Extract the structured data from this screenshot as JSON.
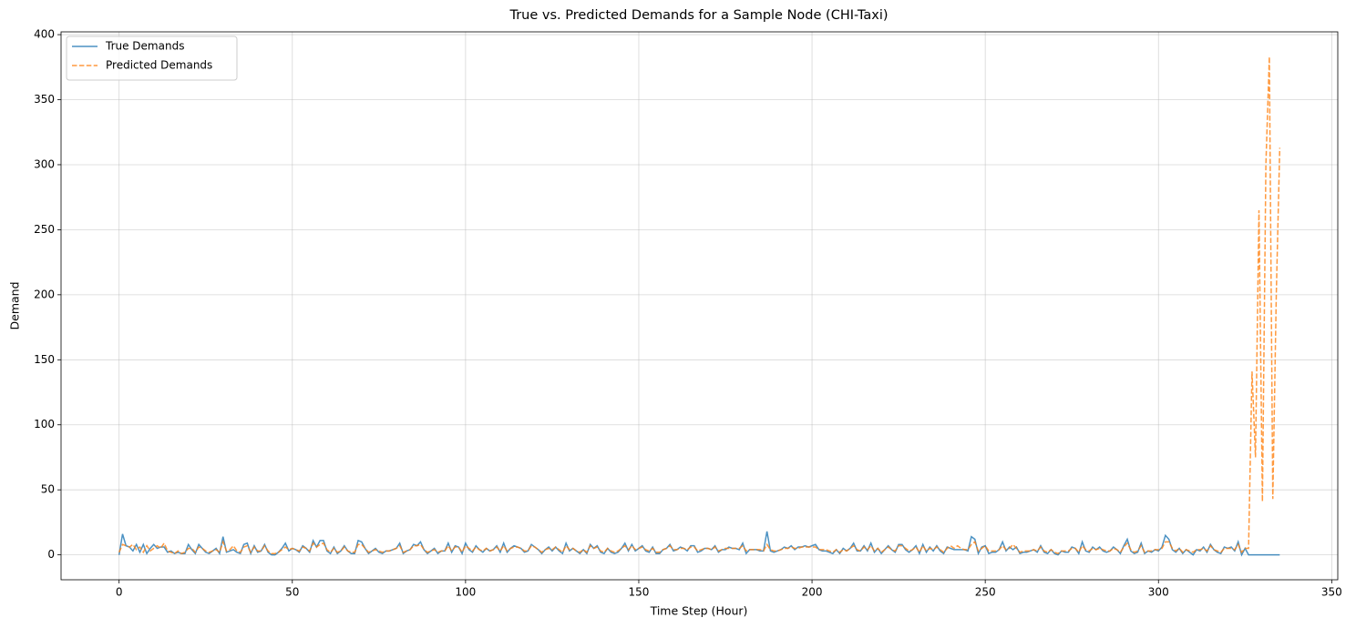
{
  "chart_data": {
    "type": "line",
    "title": "True vs. Predicted Demands for a Sample Node (CHI-Taxi)",
    "xlabel": "Time Step (Hour)",
    "ylabel": "Demand",
    "x": [
      0,
      1,
      2,
      3,
      4,
      5,
      6,
      7,
      8,
      9,
      10,
      11,
      12,
      13,
      14,
      15,
      16,
      17,
      18,
      19,
      20,
      21,
      22,
      23,
      24,
      25,
      26,
      27,
      28,
      29,
      30,
      31,
      32,
      33,
      34,
      35,
      36,
      37,
      38,
      39,
      40,
      41,
      42,
      43,
      44,
      45,
      46,
      47,
      48,
      49,
      50,
      51,
      52,
      53,
      54,
      55,
      56,
      57,
      58,
      59,
      60,
      61,
      62,
      63,
      64,
      65,
      66,
      67,
      68,
      69,
      70,
      71,
      72,
      73,
      74,
      75,
      76,
      77,
      78,
      79,
      80,
      81,
      82,
      83,
      84,
      85,
      86,
      87,
      88,
      89,
      90,
      91,
      92,
      93,
      94,
      95,
      96,
      97,
      98,
      99,
      100,
      101,
      102,
      103,
      104,
      105,
      106,
      107,
      108,
      109,
      110,
      111,
      112,
      113,
      114,
      115,
      116,
      117,
      118,
      119,
      120,
      121,
      122,
      123,
      124,
      125,
      126,
      127,
      128,
      129,
      130,
      131,
      132,
      133,
      134,
      135,
      136,
      137,
      138,
      139,
      140,
      141,
      142,
      143,
      144,
      145,
      146,
      147,
      148,
      149,
      150,
      151,
      152,
      153,
      154,
      155,
      156,
      157,
      158,
      159,
      160,
      161,
      162,
      163,
      164,
      165,
      166,
      167,
      168,
      169,
      170,
      171,
      172,
      173,
      174,
      175,
      176,
      177,
      178,
      179,
      180,
      181,
      182,
      183,
      184,
      185,
      186,
      187,
      188,
      189,
      190,
      191,
      192,
      193,
      194,
      195,
      196,
      197,
      198,
      199,
      200,
      201,
      202,
      203,
      204,
      205,
      206,
      207,
      208,
      209,
      210,
      211,
      212,
      213,
      214,
      215,
      216,
      217,
      218,
      219,
      220,
      221,
      222,
      223,
      224,
      225,
      226,
      227,
      228,
      229,
      230,
      231,
      232,
      233,
      234,
      235,
      236,
      237,
      238,
      239,
      240,
      241,
      242,
      243,
      244,
      245,
      246,
      247,
      248,
      249,
      250,
      251,
      252,
      253,
      254,
      255,
      256,
      257,
      258,
      259,
      260,
      261,
      262,
      263,
      264,
      265,
      266,
      267,
      268,
      269,
      270,
      271,
      272,
      273,
      274,
      275,
      276,
      277,
      278,
      279,
      280,
      281,
      282,
      283,
      284,
      285,
      286,
      287,
      288,
      289,
      290,
      291,
      292,
      293,
      294,
      295,
      296,
      297,
      298,
      299,
      300,
      301,
      302,
      303,
      304,
      305,
      306,
      307,
      308,
      309,
      310,
      311,
      312,
      313,
      314,
      315,
      316,
      317,
      318,
      319,
      320,
      321,
      322,
      323,
      324,
      325,
      326,
      327,
      328,
      329,
      330,
      331,
      332,
      333,
      334,
      335
    ],
    "series": [
      {
        "name": "True Demands",
        "color": "#1f77b4",
        "dash": false,
        "values": [
          0,
          16,
          7,
          6,
          3,
          8,
          2,
          8,
          1,
          5,
          8,
          5,
          6,
          6,
          2,
          3,
          1,
          2,
          1,
          1,
          8,
          4,
          1,
          8,
          5,
          2,
          1,
          3,
          5,
          1,
          14,
          2,
          3,
          4,
          2,
          1,
          8,
          9,
          1,
          7,
          2,
          3,
          8,
          2,
          0,
          0,
          2,
          5,
          9,
          3,
          5,
          4,
          2,
          7,
          5,
          2,
          11,
          6,
          11,
          11,
          3,
          1,
          6,
          1,
          3,
          7,
          3,
          1,
          1,
          11,
          10,
          5,
          1,
          3,
          5,
          2,
          1,
          3,
          3,
          4,
          5,
          9,
          1,
          3,
          4,
          8,
          7,
          10,
          4,
          1,
          3,
          5,
          1,
          3,
          3,
          9,
          2,
          7,
          6,
          1,
          9,
          4,
          2,
          7,
          4,
          2,
          5,
          3,
          4,
          7,
          2,
          9,
          2,
          5,
          7,
          6,
          5,
          2,
          3,
          8,
          6,
          4,
          1,
          4,
          6,
          3,
          6,
          3,
          1,
          9,
          3,
          5,
          3,
          1,
          4,
          1,
          8,
          5,
          7,
          2,
          1,
          5,
          2,
          1,
          2,
          5,
          9,
          3,
          8,
          3,
          5,
          7,
          3,
          2,
          6,
          1,
          1,
          4,
          5,
          8,
          3,
          4,
          6,
          5,
          3,
          7,
          7,
          2,
          3,
          5,
          5,
          4,
          7,
          2,
          4,
          4,
          6,
          5,
          5,
          4,
          9,
          1,
          4,
          4,
          4,
          3,
          3,
          18,
          3,
          2,
          3,
          4,
          6,
          5,
          7,
          4,
          6,
          6,
          7,
          6,
          7,
          8,
          4,
          3,
          3,
          2,
          1,
          4,
          1,
          5,
          3,
          5,
          9,
          3,
          3,
          7,
          3,
          9,
          2,
          5,
          1,
          4,
          7,
          4,
          2,
          8,
          8,
          4,
          2,
          4,
          7,
          1,
          8,
          2,
          6,
          3,
          7,
          3,
          1,
          6,
          5,
          4,
          4,
          4,
          4,
          3,
          14,
          12,
          1,
          6,
          7,
          1,
          2,
          2,
          4,
          10,
          3,
          6,
          4,
          6,
          1,
          2,
          2,
          3,
          4,
          2,
          7,
          2,
          1,
          4,
          1,
          0,
          3,
          2,
          2,
          6,
          5,
          1,
          10,
          3,
          2,
          6,
          4,
          6,
          3,
          2,
          3,
          6,
          4,
          1,
          7,
          12,
          3,
          1,
          2,
          9,
          1,
          3,
          2,
          4,
          3,
          6,
          15,
          12,
          4,
          2,
          5,
          1,
          4,
          2,
          0,
          4,
          3,
          6,
          2,
          8,
          4,
          2,
          1,
          6,
          5,
          6,
          3,
          10,
          0,
          5,
          0,
          0,
          0,
          0,
          0,
          0,
          0,
          0,
          0,
          0
        ]
      },
      {
        "name": "Predicted Demands",
        "color": "#ff7f0e",
        "dash": true,
        "values": [
          2,
          8,
          7,
          6,
          8,
          4,
          6,
          2,
          7,
          3,
          5,
          7,
          5,
          9,
          3,
          2,
          1,
          3,
          1,
          2,
          5,
          5,
          2,
          6,
          5,
          3,
          2,
          3,
          4,
          2,
          10,
          3,
          4,
          7,
          3,
          2,
          6,
          7,
          2,
          6,
          3,
          3,
          7,
          3,
          1,
          1,
          2,
          4,
          6,
          4,
          5,
          4,
          3,
          6,
          5,
          3,
          9,
          6,
          8,
          9,
          4,
          2,
          5,
          2,
          3,
          6,
          3,
          2,
          2,
          8,
          8,
          5,
          2,
          3,
          4,
          3,
          2,
          3,
          3,
          4,
          5,
          7,
          2,
          3,
          4,
          7,
          7,
          8,
          4,
          2,
          3,
          4,
          2,
          3,
          3,
          7,
          3,
          6,
          6,
          2,
          7,
          5,
          3,
          6,
          4,
          3,
          5,
          3,
          4,
          6,
          3,
          7,
          3,
          5,
          6,
          6,
          5,
          3,
          3,
          7,
          6,
          4,
          2,
          4,
          5,
          4,
          6,
          4,
          2,
          7,
          4,
          5,
          3,
          2,
          4,
          2,
          7,
          5,
          6,
          3,
          2,
          5,
          3,
          2,
          3,
          5,
          7,
          4,
          7,
          4,
          5,
          6,
          4,
          3,
          5,
          2,
          2,
          4,
          5,
          7,
          4,
          4,
          5,
          5,
          4,
          6,
          6,
          3,
          4,
          5,
          5,
          4,
          6,
          3,
          4,
          5,
          5,
          5,
          5,
          5,
          7,
          3,
          4,
          4,
          4,
          4,
          3,
          8,
          4,
          3,
          3,
          4,
          5,
          5,
          6,
          5,
          5,
          6,
          6,
          6,
          6,
          6,
          4,
          4,
          4,
          3,
          2,
          4,
          2,
          4,
          3,
          5,
          7,
          4,
          3,
          6,
          4,
          7,
          3,
          5,
          2,
          4,
          6,
          4,
          3,
          7,
          7,
          5,
          3,
          4,
          6,
          2,
          7,
          3,
          5,
          4,
          6,
          4,
          2,
          5,
          7,
          5,
          7,
          5,
          4,
          4,
          8,
          10,
          3,
          5,
          7,
          3,
          3,
          3,
          4,
          7,
          4,
          5,
          8,
          5,
          2,
          3,
          3,
          3,
          4,
          3,
          6,
          3,
          2,
          4,
          2,
          1,
          3,
          3,
          3,
          5,
          5,
          2,
          7,
          4,
          3,
          5,
          4,
          5,
          4,
          3,
          3,
          5,
          4,
          2,
          6,
          9,
          4,
          2,
          3,
          7,
          2,
          3,
          3,
          4,
          4,
          5,
          10,
          10,
          5,
          3,
          5,
          2,
          4,
          3,
          2,
          4,
          4,
          5,
          3,
          7,
          4,
          3,
          2,
          5,
          5,
          5,
          4,
          8,
          2,
          5,
          5,
          141,
          75,
          265,
          41,
          300,
          383,
          43,
          200,
          313
        ]
      }
    ],
    "xlim": [
      -16.75,
      351.75
    ],
    "xticks": [
      0,
      50,
      100,
      150,
      200,
      250,
      300,
      350
    ],
    "ylim": [
      -19.15,
      402.15
    ],
    "yticks": [
      0,
      50,
      100,
      150,
      200,
      250,
      300,
      350,
      400
    ],
    "grid": true,
    "legend": "upper-left"
  }
}
